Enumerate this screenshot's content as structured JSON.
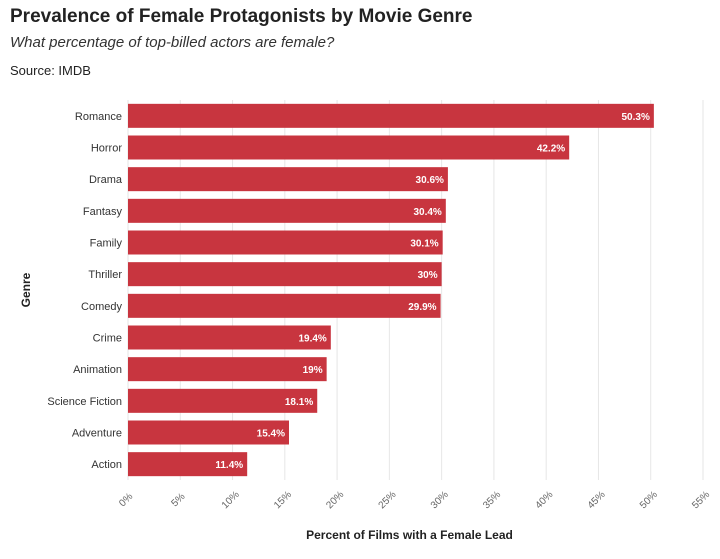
{
  "header": {
    "title": "Prevalence of Female Protagonists by Movie Genre",
    "subtitle": "What percentage of top-billed actors are female?",
    "source": "Source: IMDB"
  },
  "chart_data": {
    "type": "bar",
    "orientation": "horizontal",
    "categories": [
      "Romance",
      "Horror",
      "Drama",
      "Fantasy",
      "Family",
      "Thriller",
      "Comedy",
      "Crime",
      "Animation",
      "Science Fiction",
      "Adventure",
      "Action"
    ],
    "values": [
      50.3,
      42.2,
      30.6,
      30.4,
      30.1,
      30,
      29.9,
      19.4,
      19,
      18.1,
      15.4,
      11.4
    ],
    "value_labels": [
      "50.3%",
      "42.2%",
      "30.6%",
      "30.4%",
      "30.1%",
      "30%",
      "29.9%",
      "19.4%",
      "19%",
      "18.1%",
      "15.4%",
      "11.4%"
    ],
    "xlabel": "Percent of Films with a Female Lead",
    "ylabel": "Genre",
    "xlim": [
      0,
      55
    ],
    "x_ticks": [
      "0%",
      "5%",
      "10%",
      "15%",
      "20%",
      "25%",
      "30%",
      "35%",
      "40%",
      "45%",
      "50%",
      "55%"
    ],
    "grid": true,
    "legend": "none",
    "bar_color": "#c8353f"
  }
}
